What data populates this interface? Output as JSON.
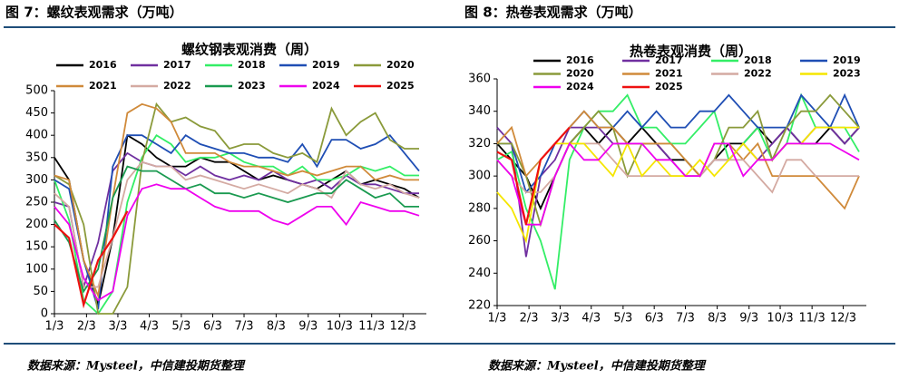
{
  "headers": [
    "图 7：螺纹表观需求（万吨）",
    "图 8：热卷表观需求（万吨）"
  ],
  "sources": [
    "数据来源：Mysteel，中信建投期货整理",
    "数据来源：Mysteel，中信建投期货整理"
  ],
  "chart_data": [
    {
      "type": "line",
      "title": "螺纹钢表观消费（周）",
      "x": [
        0,
        2,
        4,
        6,
        8,
        10,
        12,
        14,
        16,
        18,
        20,
        22,
        24,
        26,
        28,
        30,
        32,
        34,
        36,
        38,
        40,
        42,
        44,
        46,
        48,
        50
      ],
      "xlim": [
        0,
        51
      ],
      "xticks": [
        {
          "value": 0,
          "label": "1/3"
        },
        {
          "value": 4.4,
          "label": "2/3"
        },
        {
          "value": 8.7,
          "label": "3/3"
        },
        {
          "value": 13,
          "label": "4/3"
        },
        {
          "value": 17.4,
          "label": "5/3"
        },
        {
          "value": 21.7,
          "label": "6/3"
        },
        {
          "value": 26,
          "label": "7/3"
        },
        {
          "value": 30.4,
          "label": "8/3"
        },
        {
          "value": 34.8,
          "label": "9/3"
        },
        {
          "value": 39.1,
          "label": "10/3"
        },
        {
          "value": 43.5,
          "label": "11/3"
        },
        {
          "value": 47.8,
          "label": "12/3"
        }
      ],
      "ylim": [
        0,
        500
      ],
      "yticks": [
        0,
        50,
        100,
        150,
        200,
        250,
        300,
        350,
        400,
        450,
        500
      ],
      "series": [
        {
          "name": "2016",
          "color": "#000000",
          "values": [
            350,
            300,
            120,
            20,
            170,
            400,
            380,
            350,
            330,
            330,
            350,
            340,
            340,
            320,
            300,
            310,
            300,
            290,
            280,
            300,
            320,
            290,
            300,
            290,
            280,
            260
          ]
        },
        {
          "name": "2017",
          "color": "#7030a0",
          "values": [
            250,
            240,
            60,
            160,
            320,
            360,
            340,
            330,
            330,
            310,
            330,
            310,
            300,
            310,
            300,
            320,
            300,
            290,
            300,
            280,
            310,
            290,
            290,
            280,
            270,
            270
          ]
        },
        {
          "name": "2018",
          "color": "#33ee66",
          "values": [
            300,
            210,
            30,
            0,
            50,
            250,
            350,
            400,
            380,
            340,
            350,
            350,
            360,
            340,
            330,
            330,
            310,
            330,
            300,
            300,
            310,
            330,
            320,
            330,
            310,
            310
          ]
        },
        {
          "name": "2019",
          "color": "#1f4eb4",
          "values": [
            300,
            280,
            120,
            10,
            330,
            400,
            400,
            380,
            360,
            400,
            380,
            370,
            360,
            360,
            350,
            350,
            340,
            380,
            330,
            390,
            390,
            370,
            380,
            400,
            360,
            320
          ]
        },
        {
          "name": "2020",
          "color": "#8a9a3a",
          "values": [
            310,
            290,
            200,
            0,
            0,
            60,
            340,
            470,
            430,
            440,
            420,
            410,
            370,
            380,
            380,
            360,
            350,
            360,
            340,
            460,
            400,
            430,
            450,
            390,
            370,
            370
          ]
        },
        {
          "name": "2021",
          "color": "#d08a3a",
          "values": [
            310,
            300,
            120,
            40,
            260,
            450,
            470,
            460,
            430,
            360,
            360,
            360,
            340,
            330,
            330,
            320,
            310,
            320,
            310,
            320,
            330,
            330,
            300,
            310,
            300,
            300
          ]
        },
        {
          "name": "2022",
          "color": "#d4aaa2",
          "values": [
            270,
            240,
            60,
            60,
            170,
            300,
            340,
            330,
            330,
            300,
            310,
            300,
            290,
            280,
            290,
            280,
            270,
            290,
            280,
            260,
            320,
            290,
            280,
            290,
            270,
            260
          ]
        },
        {
          "name": "2023",
          "color": "#1a9a50",
          "values": [
            210,
            160,
            50,
            100,
            260,
            330,
            320,
            320,
            300,
            280,
            290,
            270,
            270,
            260,
            270,
            260,
            250,
            260,
            270,
            270,
            300,
            280,
            260,
            270,
            240,
            240
          ]
        },
        {
          "name": "2024",
          "color": "#ee00ee",
          "values": [
            240,
            200,
            80,
            30,
            50,
            220,
            280,
            290,
            280,
            280,
            260,
            240,
            230,
            230,
            230,
            210,
            200,
            220,
            240,
            240,
            200,
            250,
            240,
            230,
            230,
            220
          ]
        },
        {
          "name": "2025",
          "color": "#ee1111",
          "values": [
            200,
            170,
            20,
            120,
            170,
            230,
            null,
            null,
            null,
            null,
            null,
            null,
            null,
            null,
            null,
            null,
            null,
            null,
            null,
            null,
            null,
            null,
            null,
            null,
            null,
            null
          ]
        }
      ]
    },
    {
      "type": "line",
      "title": "热卷表观消费（周）",
      "x": [
        0,
        2,
        4,
        6,
        8,
        10,
        12,
        14,
        16,
        18,
        20,
        22,
        24,
        26,
        28,
        30,
        32,
        34,
        36,
        38,
        40,
        42,
        44,
        46,
        48,
        50
      ],
      "xlim": [
        0,
        51
      ],
      "xticks": [
        {
          "value": 0,
          "label": "1/3"
        },
        {
          "value": 4.4,
          "label": "2/3"
        },
        {
          "value": 8.7,
          "label": "3/3"
        },
        {
          "value": 13,
          "label": "4/3"
        },
        {
          "value": 17.4,
          "label": "5/3"
        },
        {
          "value": 21.7,
          "label": "6/3"
        },
        {
          "value": 26,
          "label": "7/3"
        },
        {
          "value": 30.4,
          "label": "8/3"
        },
        {
          "value": 34.8,
          "label": "9/3"
        },
        {
          "value": 39.1,
          "label": "10/3"
        },
        {
          "value": 43.5,
          "label": "11/3"
        },
        {
          "value": 47.8,
          "label": "12/3"
        }
      ],
      "ylim": [
        220,
        360
      ],
      "yticks": [
        220,
        240,
        260,
        280,
        300,
        320,
        340,
        360
      ],
      "series": [
        {
          "name": "2016",
          "color": "#000000",
          "values": [
            320,
            310,
            300,
            280,
            300,
            320,
            330,
            320,
            330,
            320,
            330,
            320,
            310,
            310,
            300,
            310,
            320,
            320,
            330,
            320,
            330,
            320,
            320,
            330,
            320,
            330
          ]
        },
        {
          "name": "2017",
          "color": "#7030a0",
          "values": [
            330,
            320,
            250,
            300,
            310,
            330,
            330,
            330,
            320,
            320,
            320,
            320,
            310,
            300,
            300,
            310,
            310,
            320,
            310,
            320,
            330,
            320,
            330,
            330,
            320,
            330
          ]
        },
        {
          "name": "2018",
          "color": "#33ee66",
          "values": [
            310,
            315,
            280,
            260,
            230,
            310,
            330,
            340,
            340,
            350,
            330,
            330,
            320,
            320,
            330,
            340,
            310,
            320,
            330,
            310,
            320,
            350,
            330,
            330,
            330,
            315
          ]
        },
        {
          "name": "2019",
          "color": "#1f4eb4",
          "values": [
            320,
            320,
            290,
            300,
            320,
            330,
            340,
            330,
            330,
            340,
            330,
            340,
            330,
            330,
            340,
            340,
            350,
            340,
            330,
            330,
            330,
            350,
            340,
            330,
            350,
            330
          ]
        },
        {
          "name": "2020",
          "color": "#8a9a3a",
          "values": [
            320,
            320,
            300,
            270,
            300,
            320,
            330,
            340,
            330,
            300,
            320,
            320,
            320,
            310,
            300,
            310,
            330,
            330,
            340,
            310,
            330,
            340,
            340,
            350,
            340,
            330
          ]
        },
        {
          "name": "2021",
          "color": "#d08a3a",
          "values": [
            320,
            330,
            300,
            310,
            320,
            330,
            340,
            330,
            330,
            320,
            320,
            320,
            320,
            310,
            300,
            320,
            320,
            310,
            320,
            300,
            300,
            300,
            300,
            290,
            280,
            300
          ]
        },
        {
          "name": "2022",
          "color": "#d4aaa2",
          "values": [
            310,
            300,
            290,
            290,
            300,
            320,
            320,
            320,
            310,
            300,
            300,
            300,
            300,
            300,
            300,
            310,
            310,
            310,
            300,
            290,
            310,
            310,
            300,
            300,
            300,
            300
          ]
        },
        {
          "name": "2023",
          "color": "#f5e600",
          "values": [
            290,
            280,
            260,
            310,
            320,
            320,
            320,
            310,
            300,
            320,
            300,
            310,
            300,
            300,
            310,
            300,
            310,
            320,
            310,
            310,
            320,
            320,
            330,
            330,
            330,
            330
          ]
        },
        {
          "name": "2024",
          "color": "#ee00ee",
          "values": [
            310,
            300,
            270,
            270,
            300,
            320,
            310,
            310,
            320,
            320,
            320,
            310,
            310,
            300,
            300,
            320,
            320,
            300,
            310,
            310,
            320,
            320,
            320,
            320,
            315,
            310
          ]
        },
        {
          "name": "2025",
          "color": "#ee1111",
          "values": [
            315,
            310,
            270,
            310,
            320,
            330,
            null,
            null,
            null,
            null,
            null,
            null,
            null,
            null,
            null,
            null,
            null,
            null,
            null,
            null,
            null,
            null,
            null,
            null,
            null,
            null
          ]
        }
      ]
    }
  ]
}
